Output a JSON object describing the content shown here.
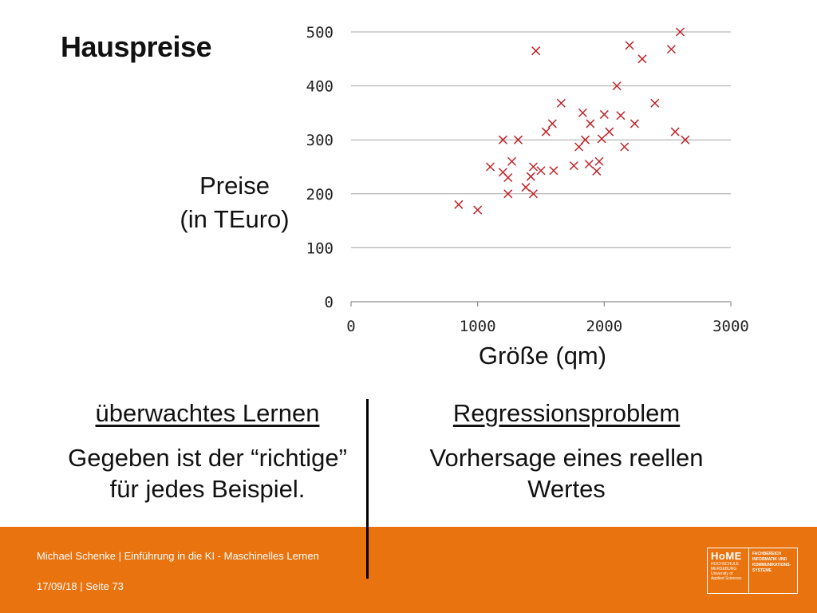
{
  "slide": {
    "title": "Hauspreise",
    "ylabel_line1": "Preise",
    "ylabel_line2": "(in TEuro)",
    "xlabel": "Größe (qm)"
  },
  "columns": {
    "left": {
      "heading": "überwachtes Lernen",
      "line1": "Gegeben ist der “richtige”",
      "line2": "für jedes Beispiel."
    },
    "right": {
      "heading": "Regressionsproblem",
      "line1": "Vorhersage eines reellen",
      "line2": "Wertes"
    }
  },
  "footer": {
    "line1": "Michael Schenke | Einführung in  die KI - Maschinelles Lernen",
    "line2": "17/09/18 | Seite 73",
    "logo_main": "HoME",
    "logo_sub1": "HOCHSCHULE",
    "logo_sub2": "MERSEBURG",
    "logo_sub3": "University of",
    "logo_sub4": "Applied Sciences",
    "logo_side1": "FACHBEREICH",
    "logo_side2": "INFORMATIK UND",
    "logo_side3": "KOMMUNIKATIONS-",
    "logo_side4": "SYSTEME",
    "color": "#e8730f"
  },
  "chart_data": {
    "type": "scatter",
    "title": "Hauspreise",
    "xlabel": "Größe (qm)",
    "ylabel": "Preise (in TEuro)",
    "xlim": [
      0,
      3000
    ],
    "ylim": [
      0,
      500
    ],
    "xticks": [
      0,
      1000,
      2000,
      3000
    ],
    "yticks": [
      0,
      100,
      200,
      300,
      400,
      500
    ],
    "grid": "horizontal",
    "marker": "x",
    "marker_color": "#c0242a",
    "points": [
      [
        850,
        180
      ],
      [
        1000,
        170
      ],
      [
        1100,
        250
      ],
      [
        1200,
        300
      ],
      [
        1200,
        240
      ],
      [
        1240,
        230
      ],
      [
        1240,
        200
      ],
      [
        1270,
        260
      ],
      [
        1320,
        300
      ],
      [
        1380,
        212
      ],
      [
        1420,
        232
      ],
      [
        1440,
        200
      ],
      [
        1440,
        250
      ],
      [
        1460,
        465
      ],
      [
        1500,
        243
      ],
      [
        1540,
        315
      ],
      [
        1590,
        330
      ],
      [
        1600,
        243
      ],
      [
        1660,
        368
      ],
      [
        1760,
        252
      ],
      [
        1800,
        287
      ],
      [
        1830,
        350
      ],
      [
        1850,
        300
      ],
      [
        1880,
        255
      ],
      [
        1890,
        330
      ],
      [
        1940,
        242
      ],
      [
        1960,
        260
      ],
      [
        1980,
        302
      ],
      [
        2000,
        347
      ],
      [
        2040,
        315
      ],
      [
        2100,
        400
      ],
      [
        2130,
        345
      ],
      [
        2160,
        287
      ],
      [
        2200,
        475
      ],
      [
        2240,
        330
      ],
      [
        2300,
        450
      ],
      [
        2400,
        368
      ],
      [
        2530,
        468
      ],
      [
        2560,
        315
      ],
      [
        2600,
        500
      ],
      [
        2640,
        300
      ]
    ]
  }
}
